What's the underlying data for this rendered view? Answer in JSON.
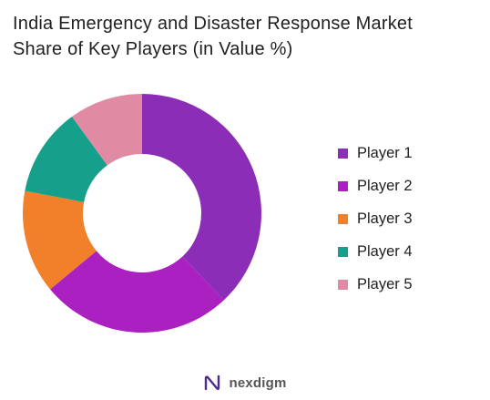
{
  "title_lines": [
    "India Emergency and Disaster Response Market",
    "Share of Key Players (in Value %)"
  ],
  "brand": {
    "name": "nexdigm",
    "logo_icon": "nexdigm-logo-icon"
  },
  "chart_data": {
    "type": "pie",
    "variant": "donut",
    "title": "India Emergency and Disaster Response Market Share of Key Players (in Value %)",
    "legend_position": "right",
    "start_angle_deg": 0,
    "direction": "clockwise",
    "slices": [
      {
        "name": "Player 1",
        "value": 38,
        "color": "#8B2DB7"
      },
      {
        "name": "Player 2",
        "value": 26,
        "color": "#AB20C0"
      },
      {
        "name": "Player 3",
        "value": 14,
        "color": "#F2802B"
      },
      {
        "name": "Player 4",
        "value": 12,
        "color": "#169F8A"
      },
      {
        "name": "Player 5",
        "value": 10,
        "color": "#E08AA3"
      }
    ]
  }
}
